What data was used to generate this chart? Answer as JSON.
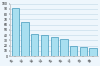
{
  "values": [
    92,
    65,
    43,
    41,
    37,
    33,
    19,
    17,
    15
  ],
  "bar_color": "#a8dff0",
  "bar_edge_color": "#4499bb",
  "background_color": "#eef6fc",
  "plot_bg_color": "#eef6fc",
  "grid_color": "#c0d8e8",
  "spine_color": "#aaaaaa",
  "ylim": [
    0,
    100
  ],
  "yticks": [
    0,
    10,
    20,
    30,
    40,
    50,
    60,
    70,
    80,
    90,
    100
  ],
  "bar_width": 0.75,
  "tick_label_size": 2.2,
  "figsize": [
    1.0,
    0.66
  ],
  "dpi": 100
}
